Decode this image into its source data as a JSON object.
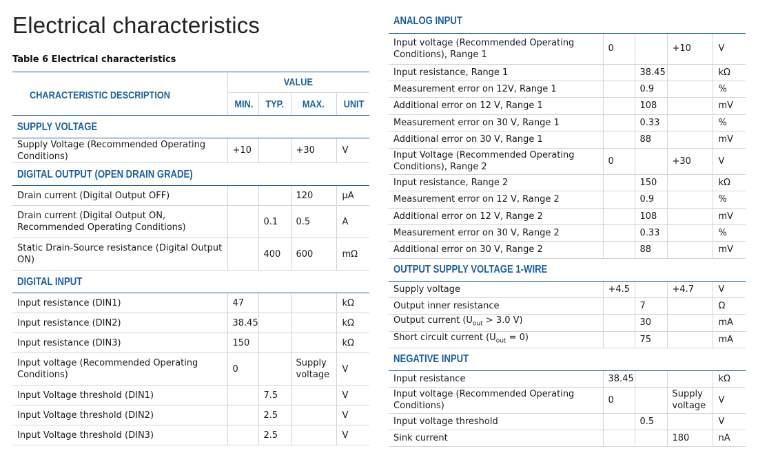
{
  "title": "Electrical characteristics",
  "caption": "Table 6 Electrical characteristics",
  "header": {
    "characteristic": "CHARACTERISTIC DESCRIPTION",
    "value": "VALUE",
    "min": "MIN.",
    "typ": "TYP.",
    "max": "MAX.",
    "unit": "UNIT"
  },
  "left_sections": [
    {
      "title": "SUPPLY VOLTAGE",
      "rows": [
        {
          "desc": "Supply Voltage (Recommended Operating Conditions)",
          "min": "+10",
          "typ": "",
          "max": "+30",
          "unit": "V"
        }
      ]
    },
    {
      "title": "DIGITAL OUTPUT (OPEN DRAIN GRADE)",
      "rows": [
        {
          "desc": "Drain current (Digital Output OFF)",
          "min": "",
          "typ": "",
          "max": "120",
          "unit": "μA"
        },
        {
          "desc": "Drain current (Digital Output ON, Recommended Operating Conditions)",
          "min": "",
          "typ": "0.1",
          "max": "0.5",
          "unit": "A"
        },
        {
          "desc": "Static Drain-Source resistance (Digital Output ON)",
          "min": "",
          "typ": "400",
          "max": "600",
          "unit": "mΩ"
        }
      ]
    },
    {
      "title": "DIGITAL INPUT",
      "rows": [
        {
          "desc": "Input resistance (DIN1)",
          "min": "47",
          "typ": "",
          "max": "",
          "unit": "kΩ"
        },
        {
          "desc": "Input resistance (DIN2)",
          "min": "38.45",
          "typ": "",
          "max": "",
          "unit": "kΩ"
        },
        {
          "desc": "Input resistance (DIN3)",
          "min": "150",
          "typ": "",
          "max": "",
          "unit": "kΩ"
        },
        {
          "desc": "Input voltage (Recommended Operating Conditions)",
          "min": "0",
          "typ": "",
          "max": "Supply voltage",
          "unit": "V"
        },
        {
          "desc": "Input Voltage threshold (DIN1)",
          "min": "",
          "typ": "7.5",
          "max": "",
          "unit": "V"
        },
        {
          "desc": "Input Voltage threshold (DIN2)",
          "min": "",
          "typ": "2.5",
          "max": "",
          "unit": "V"
        },
        {
          "desc": "Input Voltage threshold (DIN3)",
          "min": "",
          "typ": "2.5",
          "max": "",
          "unit": "V"
        }
      ]
    }
  ],
  "right_sections": [
    {
      "title": "ANALOG INPUT",
      "rows": [
        {
          "desc": "Input voltage (Recommended Operating Conditions), Range 1",
          "min": "0",
          "typ": "",
          "max": "+10",
          "unit": "V"
        },
        {
          "desc": "Input resistance, Range 1",
          "min": "",
          "typ": "38.45",
          "max": "",
          "unit": "kΩ"
        },
        {
          "desc": "Measurement error on 12V, Range 1",
          "min": "",
          "typ": "0.9",
          "max": "",
          "unit": "%"
        },
        {
          "desc": "Additional error on 12 V, Range 1",
          "min": "",
          "typ": "108",
          "max": "",
          "unit": "mV"
        },
        {
          "desc": "Measurement error on 30 V, Range 1",
          "min": "",
          "typ": "0.33",
          "max": "",
          "unit": "%"
        },
        {
          "desc": "Additional error on 30 V, Range 1",
          "min": "",
          "typ": "88",
          "max": "",
          "unit": "mV"
        },
        {
          "desc": "Input Voltage (Recommended Operating Conditions), Range 2",
          "min": "0",
          "typ": "",
          "max": "+30",
          "unit": "V"
        },
        {
          "desc": "Input resistance, Range 2",
          "min": "",
          "typ": "150",
          "max": "",
          "unit": "kΩ"
        },
        {
          "desc": "Measurement error on 12 V, Range 2",
          "min": "",
          "typ": "0.9",
          "max": "",
          "unit": "%"
        },
        {
          "desc": "Additional error on 12 V, Range 2",
          "min": "",
          "typ": "108",
          "max": "",
          "unit": "mV"
        },
        {
          "desc": "Measurement error on 30 V, Range 2",
          "min": "",
          "typ": "0.33",
          "max": "",
          "unit": "%"
        },
        {
          "desc": "Additional error on 30 V, Range 2",
          "min": "",
          "typ": "88",
          "max": "",
          "unit": "mV"
        }
      ]
    },
    {
      "title": "OUTPUT SUPPLY VOLTAGE 1-WIRE",
      "rows": [
        {
          "desc": "Supply voltage",
          "min": "+4.5",
          "typ": "",
          "max": "+4.7",
          "unit": "V"
        },
        {
          "desc": "Output inner resistance",
          "min": "",
          "typ": "7",
          "max": "",
          "unit": "Ω"
        },
        {
          "desc": "Output current (Uout > 3.0 V)",
          "min": "",
          "typ": "30",
          "max": "",
          "unit": "mA"
        },
        {
          "desc": "Short circuit current (Uout = 0)",
          "min": "",
          "typ": "75",
          "max": "",
          "unit": "mA"
        }
      ]
    },
    {
      "title": "NEGATIVE INPUT",
      "rows": [
        {
          "desc": "Input resistance",
          "min": "38.45",
          "typ": "",
          "max": "",
          "unit": "kΩ"
        },
        {
          "desc": "Input voltage (Recommended Operating Conditions)",
          "min": "0",
          "typ": "",
          "max": "Supply voltage",
          "unit": "V"
        },
        {
          "desc": "Input voltage threshold",
          "min": "",
          "typ": "0.5",
          "max": "",
          "unit": "V"
        },
        {
          "desc": "Sink current",
          "min": "",
          "typ": "",
          "max": "180",
          "unit": "nA"
        }
      ]
    }
  ]
}
